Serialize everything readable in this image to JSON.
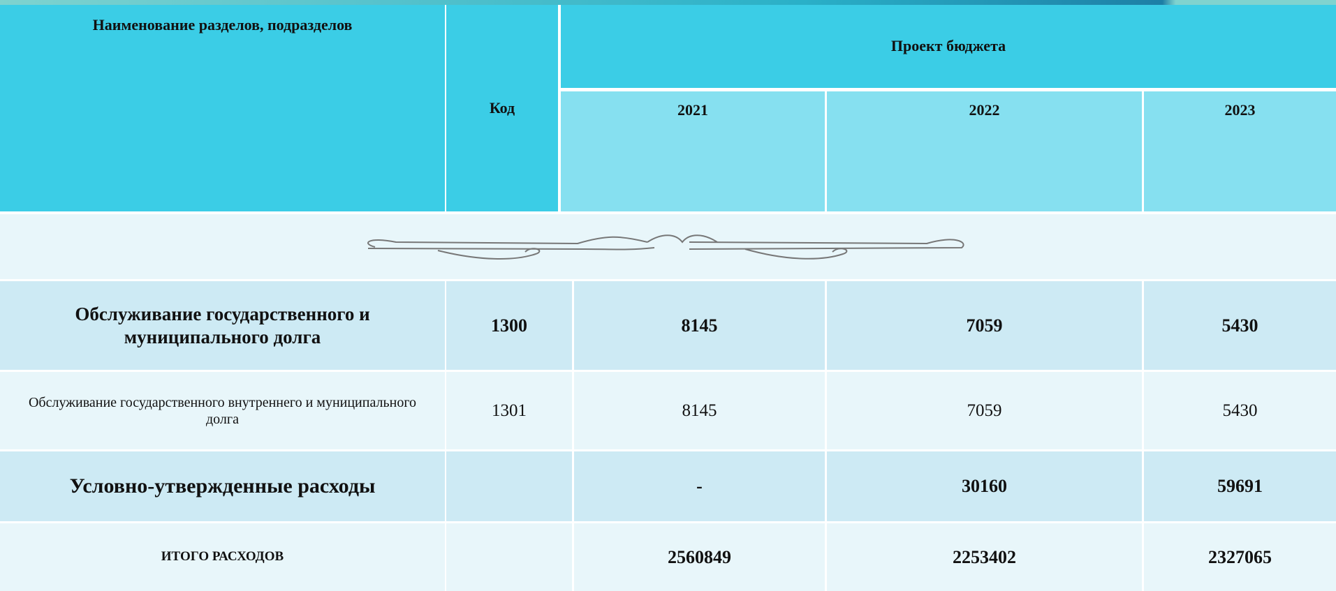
{
  "header": {
    "name_column": "Наименование разделов, подразделов",
    "code_column": "Код",
    "budget_title": "Проект бюджета",
    "years": [
      "2021",
      "2022",
      "2023"
    ]
  },
  "table": {
    "rows": [
      [
        "Обслуживание государственного и муниципального долга",
        "1300",
        "8145",
        "7059",
        "5430"
      ],
      [
        "Обслуживание государственного внутреннего и муниципального долга",
        "1301",
        "8145",
        "7059",
        "5430"
      ],
      [
        "Условно-утвержденные расходы",
        "",
        "-",
        "30160",
        "59691"
      ],
      [
        "ИТОГО РАСХОДОВ",
        "",
        "2560849",
        "2253402",
        "2327065"
      ]
    ]
  }
}
